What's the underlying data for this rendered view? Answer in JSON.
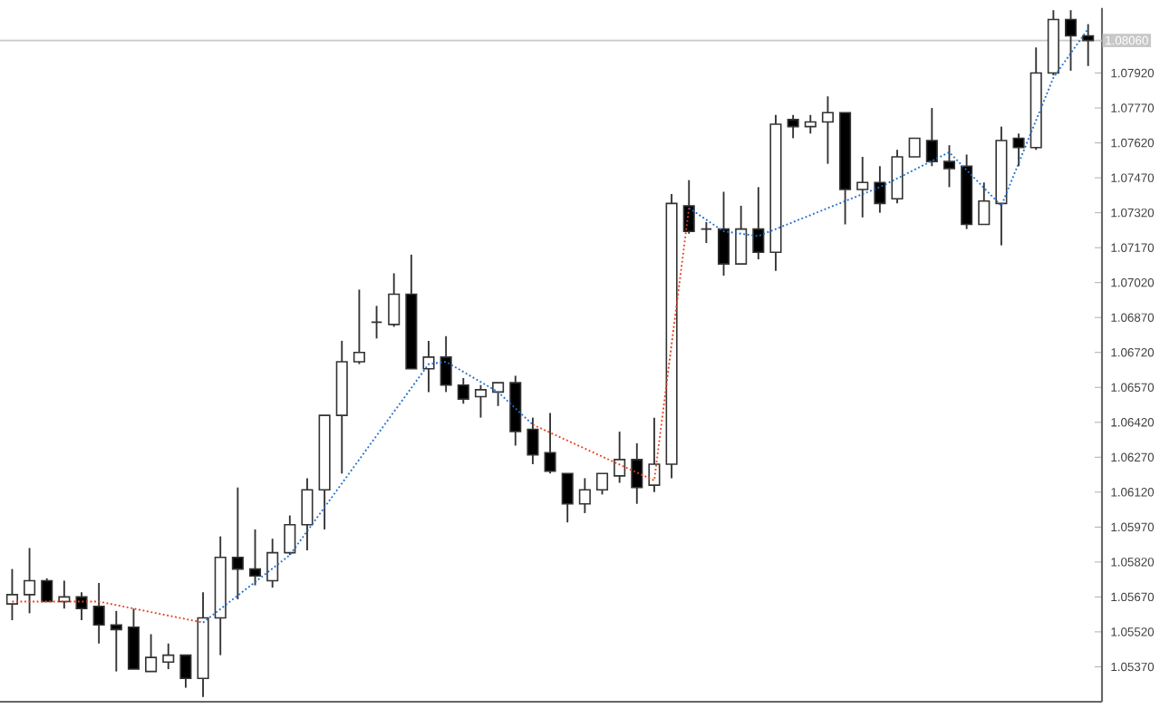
{
  "chart_data": {
    "type": "candlestick",
    "categories": [
      null,
      null,
      null,
      null,
      null,
      null,
      null,
      null,
      null,
      null,
      null,
      null,
      null,
      null,
      null,
      null,
      null,
      null,
      null,
      null,
      null,
      null,
      null,
      null,
      null,
      null,
      null,
      null,
      null,
      null,
      null,
      null,
      null,
      null,
      null,
      null,
      null,
      null,
      null,
      null,
      null,
      null,
      null,
      null,
      null,
      null,
      null,
      null,
      null,
      null,
      null,
      null,
      null,
      null,
      null,
      null,
      null,
      null,
      null,
      null,
      null,
      null,
      null
    ],
    "ohlc": [
      [
        1.0564,
        1.0579,
        1.0557,
        1.0568
      ],
      [
        1.0568,
        1.0588,
        1.056,
        1.0574
      ],
      [
        1.0574,
        1.0575,
        1.0565,
        1.0565
      ],
      [
        1.0565,
        1.0574,
        1.0562,
        1.0567
      ],
      [
        1.0567,
        1.0569,
        1.0557,
        1.0562
      ],
      [
        1.0563,
        1.0573,
        1.0547,
        1.0555
      ],
      [
        1.0555,
        1.0561,
        1.0535,
        1.0553
      ],
      [
        1.0554,
        1.0562,
        1.0536,
        1.0536
      ],
      [
        1.0535,
        1.0551,
        1.0535,
        1.0541
      ],
      [
        1.0539,
        1.0547,
        1.0536,
        1.0542
      ],
      [
        1.0542,
        1.0542,
        1.0528,
        1.0532
      ],
      [
        1.0532,
        1.0569,
        1.0524,
        1.0558
      ],
      [
        1.0558,
        1.0593,
        1.0542,
        1.0584
      ],
      [
        1.0584,
        1.0614,
        1.0566,
        1.0579
      ],
      [
        1.0579,
        1.0596,
        1.0572,
        1.0576
      ],
      [
        1.0574,
        1.0592,
        1.0571,
        1.0586
      ],
      [
        1.0586,
        1.0602,
        1.0585,
        1.0598
      ],
      [
        1.0598,
        1.0618,
        1.0587,
        1.0613
      ],
      [
        1.0613,
        1.0645,
        1.0596,
        1.0645
      ],
      [
        1.0645,
        1.0677,
        1.062,
        1.0668
      ],
      [
        1.0668,
        1.0699,
        1.0667,
        1.0672
      ],
      [
        1.0685,
        1.0692,
        1.0678,
        1.0685
      ],
      [
        1.0684,
        1.0706,
        1.0683,
        1.0697
      ],
      [
        1.0697,
        1.0714,
        1.0665,
        1.0665
      ],
      [
        1.0665,
        1.0677,
        1.0655,
        1.067
      ],
      [
        1.067,
        1.0679,
        1.0655,
        1.0658
      ],
      [
        1.0658,
        1.0661,
        1.065,
        1.0652
      ],
      [
        1.0653,
        1.0658,
        1.0644,
        1.0656
      ],
      [
        1.0655,
        1.0659,
        1.0649,
        1.0659
      ],
      [
        1.0659,
        1.0662,
        1.0632,
        1.0638
      ],
      [
        1.0639,
        1.0644,
        1.0624,
        1.0628
      ],
      [
        1.0629,
        1.0646,
        1.062,
        1.0621
      ],
      [
        1.062,
        1.062,
        1.0599,
        1.0607
      ],
      [
        1.0607,
        1.0618,
        1.0603,
        1.0613
      ],
      [
        1.0613,
        1.062,
        1.0611,
        1.062
      ],
      [
        1.0619,
        1.0638,
        1.0616,
        1.0626
      ],
      [
        1.0626,
        1.0633,
        1.0607,
        1.0614
      ],
      [
        1.0615,
        1.0644,
        1.0612,
        1.0624
      ],
      [
        1.0624,
        1.074,
        1.0618,
        1.0736
      ],
      [
        1.0735,
        1.0746,
        1.0723,
        1.0724
      ],
      [
        1.0725,
        1.0728,
        1.0719,
        1.0725
      ],
      [
        1.0725,
        1.0741,
        1.0705,
        1.071
      ],
      [
        1.071,
        1.0735,
        1.071,
        1.0725
      ],
      [
        1.0725,
        1.0743,
        1.0712,
        1.0715
      ],
      [
        1.0715,
        1.0774,
        1.0707,
        1.077
      ],
      [
        1.0772,
        1.0774,
        1.0764,
        1.0769
      ],
      [
        1.0769,
        1.0774,
        1.0766,
        1.0771
      ],
      [
        1.0771,
        1.0782,
        1.0753,
        1.0775
      ],
      [
        1.0775,
        1.0775,
        1.0727,
        1.0742
      ],
      [
        1.0742,
        1.0756,
        1.073,
        1.0745
      ],
      [
        1.0745,
        1.0752,
        1.0732,
        1.0736
      ],
      [
        1.0738,
        1.0759,
        1.0736,
        1.0756
      ],
      [
        1.0756,
        1.0764,
        1.0756,
        1.0764
      ],
      [
        1.0763,
        1.0777,
        1.0752,
        1.0754
      ],
      [
        1.0754,
        1.0761,
        1.0743,
        1.0751
      ],
      [
        1.0752,
        1.0757,
        1.0725,
        1.0727
      ],
      [
        1.0727,
        1.0745,
        1.0727,
        1.0737
      ],
      [
        1.0736,
        1.0769,
        1.0718,
        1.0763
      ],
      [
        1.0764,
        1.0766,
        1.0752,
        1.076
      ],
      [
        1.076,
        1.0803,
        1.0759,
        1.0792
      ],
      [
        1.0792,
        1.0819,
        1.0791,
        1.0815
      ],
      [
        1.0815,
        1.0819,
        1.0793,
        1.0808
      ],
      [
        1.0808,
        1.0813,
        1.0795,
        1.0806
      ]
    ],
    "series": [
      {
        "type": "line",
        "color": "#e8401c",
        "values": [
          1.0565,
          null,
          null,
          null,
          null,
          1.0565,
          null,
          null,
          null,
          null,
          null,
          1.0556,
          null,
          null,
          null,
          null,
          null,
          null,
          null,
          null,
          null,
          null,
          null,
          null,
          null,
          null,
          null,
          null,
          null,
          null,
          null,
          null,
          null,
          null,
          null,
          null,
          null,
          null,
          null,
          null,
          null,
          null,
          null,
          null,
          null,
          null,
          null,
          null,
          null,
          null,
          null,
          null,
          null,
          null,
          null,
          null,
          null,
          null,
          null,
          null,
          null,
          null,
          null
        ]
      },
      {
        "type": "line",
        "color": "#e8401c",
        "values": [
          null,
          null,
          null,
          null,
          null,
          null,
          null,
          null,
          null,
          null,
          null,
          null,
          null,
          null,
          null,
          null,
          null,
          null,
          null,
          null,
          null,
          null,
          null,
          null,
          null,
          null,
          null,
          null,
          null,
          null,
          1.0641,
          null,
          null,
          null,
          null,
          null,
          null,
          1.0617,
          null,
          1.0734,
          null,
          null,
          null,
          null,
          null,
          null,
          null,
          null,
          null,
          null,
          null,
          null,
          null,
          null,
          null,
          null,
          null,
          null,
          null,
          null,
          null,
          null,
          null
        ]
      },
      {
        "type": "line",
        "color": "#1e6fd0",
        "values": [
          null,
          null,
          null,
          null,
          null,
          null,
          null,
          null,
          null,
          null,
          null,
          1.0556,
          null,
          null,
          null,
          null,
          1.0585,
          null,
          null,
          null,
          null,
          null,
          null,
          null,
          1.0667,
          1.0668,
          null,
          null,
          1.0655,
          null,
          1.0641,
          null,
          null,
          null,
          null,
          null,
          null,
          null,
          null,
          null,
          null,
          null,
          null,
          null,
          null,
          null,
          null,
          null,
          null,
          null,
          null,
          null,
          null,
          null,
          null,
          null,
          null,
          null,
          null,
          null,
          null,
          null,
          null
        ]
      },
      {
        "type": "line",
        "color": "#1e6fd0",
        "values": [
          null,
          null,
          null,
          null,
          null,
          null,
          null,
          null,
          null,
          null,
          null,
          null,
          null,
          null,
          null,
          null,
          null,
          null,
          null,
          null,
          null,
          null,
          null,
          null,
          null,
          null,
          null,
          null,
          null,
          null,
          null,
          null,
          null,
          null,
          null,
          null,
          null,
          null,
          null,
          1.0734,
          null,
          1.0724,
          null,
          1.0722,
          null,
          null,
          null,
          null,
          null,
          null,
          1.0743,
          null,
          null,
          null,
          1.0758,
          null,
          null,
          1.0735,
          null,
          null,
          1.079,
          null,
          1.0811
        ]
      }
    ],
    "line_style": "dotted",
    "ylim": [
      1.0522,
      1.082
    ],
    "yticks": [
      {
        "value": 1.0537,
        "label": "1.05370"
      },
      {
        "value": 1.0552,
        "label": "1.05520"
      },
      {
        "value": 1.0567,
        "label": "1.05670"
      },
      {
        "value": 1.0582,
        "label": "1.05820"
      },
      {
        "value": 1.0597,
        "label": "1.05970"
      },
      {
        "value": 1.0612,
        "label": "1.06120"
      },
      {
        "value": 1.0627,
        "label": "1.06270"
      },
      {
        "value": 1.0642,
        "label": "1.06420"
      },
      {
        "value": 1.0657,
        "label": "1.06570"
      },
      {
        "value": 1.0672,
        "label": "1.06720"
      },
      {
        "value": 1.0687,
        "label": "1.06870"
      },
      {
        "value": 1.0702,
        "label": "1.07020"
      },
      {
        "value": 1.0717,
        "label": "1.07170"
      },
      {
        "value": 1.0732,
        "label": "1.07320"
      },
      {
        "value": 1.0747,
        "label": "1.07470"
      },
      {
        "value": 1.0762,
        "label": "1.07620"
      },
      {
        "value": 1.0777,
        "label": "1.07770"
      },
      {
        "value": 1.0792,
        "label": "1.07920"
      }
    ],
    "ref_lines": [
      {
        "axis": "y",
        "value": 1.0806,
        "label": "1.08060",
        "color": "#c8c8c8"
      }
    ],
    "tick_labels": "y"
  }
}
